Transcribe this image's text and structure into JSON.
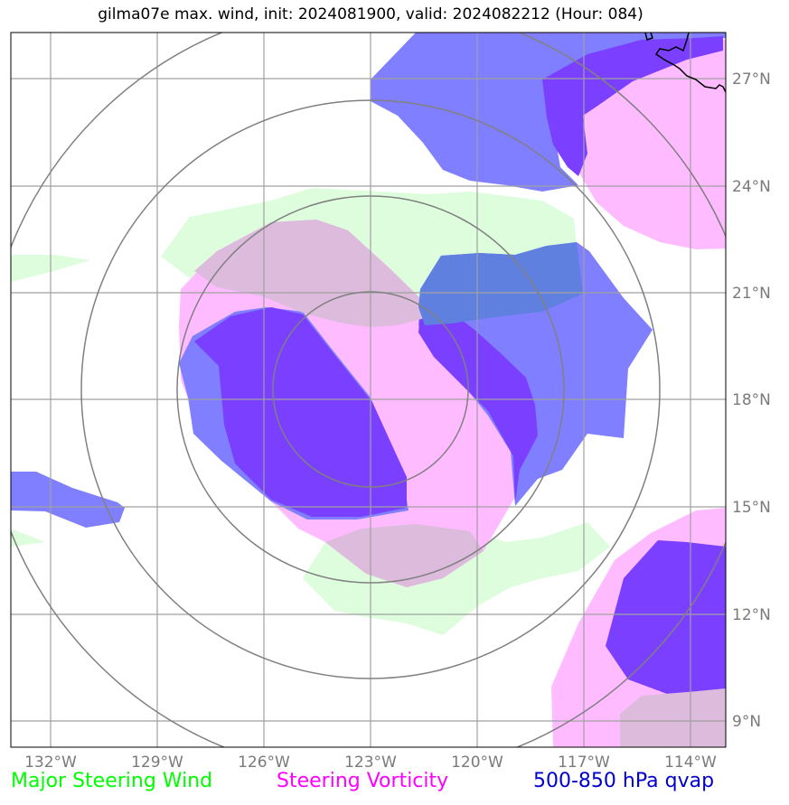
{
  "title": "gilma07e max. wind, init: 2024081900, valid: 2024082212 (Hour: 084)",
  "legend": {
    "wind": "Major Steering Wind",
    "vorticity": "Steering Vorticity",
    "qvap": "500-850 hPa qvap"
  },
  "colors": {
    "wind": "#00ff00",
    "vorticity": "#ff00ff",
    "qvap": "#0000cc",
    "wind_fill": "#ddfddd",
    "vorticity_fill": "#ffbbff",
    "qvap_fill": "#7f7fff",
    "qvap_strong_fill": "#7b3fff"
  },
  "lon_ticks": [
    "132°W",
    "129°W",
    "126°W",
    "123°W",
    "120°W",
    "117°W",
    "114°W"
  ],
  "lat_ticks": [
    "27°N",
    "24°N",
    "21°N",
    "18°N",
    "15°N",
    "12°N",
    "9°N"
  ],
  "storm_center": {
    "lon": -123.0,
    "lat": 18.5
  },
  "range_rings_count": 4
}
